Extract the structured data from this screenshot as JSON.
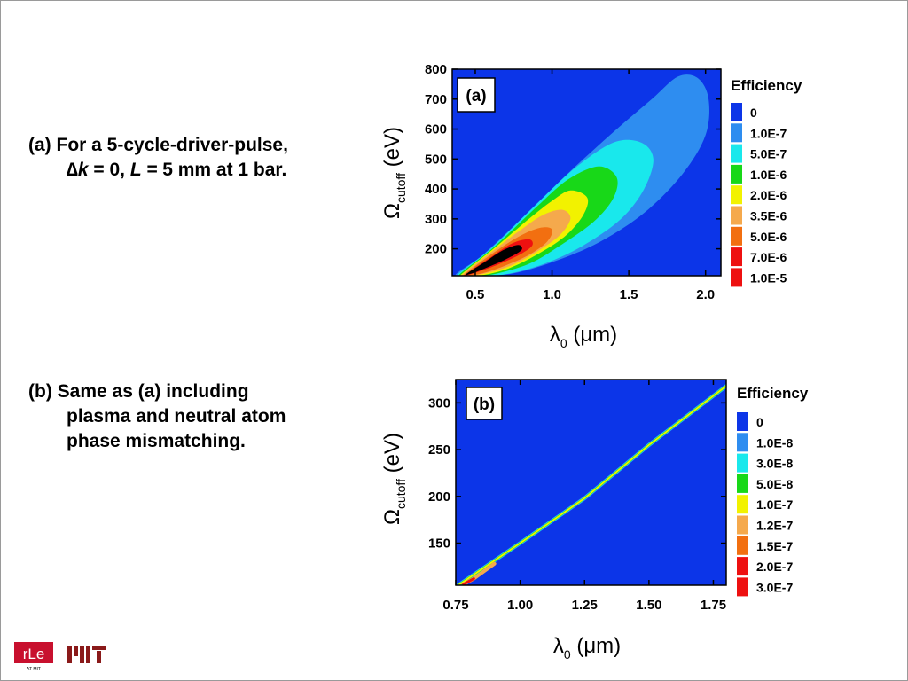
{
  "captions": {
    "a_line1": "(a) For a  5-cycle-driver-pulse,",
    "a_line2_delta": "∆",
    "a_line2_k": "k",
    "a_line2_mid": " = 0, ",
    "a_line2_L": "L =",
    "a_line2_end": " 5 mm at 1 bar.",
    "b_line1": "(b) Same as (a) including",
    "b_line2": "plasma and  neutral atom",
    "b_line3": "phase mismatching."
  },
  "logos": {
    "rle": "rLe",
    "rle_sub": "AT MIT",
    "mit": "MIT"
  },
  "colors": {
    "background": "#0c35e8",
    "levels": [
      "#0c35e8",
      "#2e8df0",
      "#19e8ec",
      "#18d818",
      "#f2f200",
      "#f5a94c",
      "#f26f10",
      "#ee1010"
    ]
  },
  "chart_data": [
    {
      "type": "heatmap",
      "panel_label": "(a)",
      "xlabel_symbol": "λ",
      "xlabel_sub": "0",
      "xlabel_unit": " (μm)",
      "ylabel_symbol": "Ω",
      "ylabel_sub": "cutoff",
      "ylabel_unit": " (eV)",
      "xlim": [
        0.35,
        2.1
      ],
      "ylim": [
        110,
        800
      ],
      "x_ticks": [
        0.5,
        1.0,
        1.5,
        2.0
      ],
      "x_tick_labels": [
        "0.5",
        "1.0",
        "1.5",
        "2.0"
      ],
      "y_ticks": [
        200,
        300,
        400,
        500,
        600,
        700,
        800
      ],
      "y_tick_labels": [
        "200",
        "300",
        "400",
        "500",
        "600",
        "700",
        "800"
      ],
      "legend_title": "Efficiency",
      "legend_levels": [
        "0",
        "1.0E-7",
        "5.0E-7",
        "1.0E-6",
        "2.0E-6",
        "3.5E-6",
        "5.0E-6",
        "7.0E-6",
        "1.0E-5"
      ],
      "contours": [
        {
          "level": "1.0E-7",
          "points": [
            [
              0.37,
              110
            ],
            [
              0.55,
              180
            ],
            [
              0.8,
              300
            ],
            [
              1.1,
              450
            ],
            [
              1.4,
              590
            ],
            [
              1.65,
              700
            ],
            [
              1.82,
              775
            ],
            [
              1.95,
              770
            ],
            [
              2.02,
              700
            ],
            [
              2.0,
              580
            ],
            [
              1.85,
              450
            ],
            [
              1.6,
              320
            ],
            [
              1.3,
              220
            ],
            [
              1.0,
              155
            ],
            [
              0.75,
              118
            ],
            [
              0.55,
              110
            ]
          ]
        },
        {
          "level": "5.0E-7",
          "points": [
            [
              0.38,
              110
            ],
            [
              0.6,
              200
            ],
            [
              0.9,
              350
            ],
            [
              1.15,
              470
            ],
            [
              1.4,
              555
            ],
            [
              1.58,
              555
            ],
            [
              1.66,
              500
            ],
            [
              1.6,
              400
            ],
            [
              1.45,
              300
            ],
            [
              1.2,
              210
            ],
            [
              0.95,
              150
            ],
            [
              0.7,
              115
            ],
            [
              0.5,
              110
            ]
          ]
        },
        {
          "level": "1.0E-6",
          "points": [
            [
              0.39,
              110
            ],
            [
              0.62,
              205
            ],
            [
              0.9,
              340
            ],
            [
              1.1,
              430
            ],
            [
              1.3,
              475
            ],
            [
              1.42,
              440
            ],
            [
              1.4,
              370
            ],
            [
              1.27,
              290
            ],
            [
              1.05,
              210
            ],
            [
              0.85,
              150
            ],
            [
              0.62,
              115
            ],
            [
              0.48,
              110
            ]
          ]
        },
        {
          "level": "2.0E-6",
          "points": [
            [
              0.4,
              110
            ],
            [
              0.63,
              205
            ],
            [
              0.85,
              300
            ],
            [
              1.0,
              360
            ],
            [
              1.12,
              395
            ],
            [
              1.23,
              370
            ],
            [
              1.2,
              310
            ],
            [
              1.08,
              240
            ],
            [
              0.9,
              180
            ],
            [
              0.72,
              135
            ],
            [
              0.55,
              112
            ],
            [
              0.45,
              110
            ]
          ]
        },
        {
          "level": "3.5E-6",
          "points": [
            [
              0.41,
              110
            ],
            [
              0.62,
              195
            ],
            [
              0.8,
              265
            ],
            [
              0.95,
              315
            ],
            [
              1.07,
              330
            ],
            [
              1.12,
              300
            ],
            [
              1.05,
              245
            ],
            [
              0.9,
              190
            ],
            [
              0.75,
              148
            ],
            [
              0.6,
              122
            ],
            [
              0.48,
              110
            ]
          ]
        },
        {
          "level": "5.0E-6",
          "points": [
            [
              0.42,
              110
            ],
            [
              0.6,
              180
            ],
            [
              0.78,
              240
            ],
            [
              0.92,
              270
            ],
            [
              1.0,
              265
            ],
            [
              0.97,
              225
            ],
            [
              0.85,
              180
            ],
            [
              0.7,
              145
            ],
            [
              0.56,
              120
            ],
            [
              0.46,
              110
            ]
          ]
        },
        {
          "level": "7.0E-6",
          "points": [
            [
              0.43,
              112
            ],
            [
              0.6,
              172
            ],
            [
              0.74,
              218
            ],
            [
              0.85,
              232
            ],
            [
              0.87,
              210
            ],
            [
              0.78,
              178
            ],
            [
              0.65,
              148
            ],
            [
              0.53,
              125
            ],
            [
              0.45,
              112
            ]
          ]
        },
        {
          "level": "1.0E-5",
          "points": [
            [
              0.44,
              115
            ],
            [
              0.56,
              155
            ],
            [
              0.68,
              195
            ],
            [
              0.78,
              213
            ],
            [
              0.8,
              195
            ],
            [
              0.7,
              165
            ],
            [
              0.58,
              138
            ],
            [
              0.48,
              118
            ]
          ]
        }
      ]
    },
    {
      "type": "heatmap",
      "panel_label": "(b)",
      "xlabel_symbol": "λ",
      "xlabel_sub": "0",
      "xlabel_unit": " (μm)",
      "ylabel_symbol": "Ω",
      "ylabel_sub": "cutoff",
      "ylabel_unit": " (eV)",
      "xlim": [
        0.75,
        1.8
      ],
      "ylim": [
        105,
        325
      ],
      "x_ticks": [
        0.75,
        1.0,
        1.25,
        1.5,
        1.75
      ],
      "x_tick_labels": [
        "0.75",
        "1.00",
        "1.25",
        "1.50",
        "1.75"
      ],
      "y_ticks": [
        150,
        200,
        250,
        300
      ],
      "y_tick_labels": [
        "150",
        "200",
        "250",
        "300"
      ],
      "legend_title": "Efficiency",
      "legend_levels": [
        "0",
        "1.0E-8",
        "3.0E-8",
        "5.0E-8",
        "1.0E-7",
        "1.2E-7",
        "1.5E-7",
        "2.0E-7",
        "3.0E-7"
      ],
      "ridge": [
        [
          0.76,
          105
        ],
        [
          0.85,
          122
        ],
        [
          1.0,
          150
        ],
        [
          1.25,
          198
        ],
        [
          1.5,
          255
        ],
        [
          1.8,
          318
        ]
      ],
      "ridge_widths": {
        "1.0E-8": 4.5,
        "3.0E-8": 3.5,
        "5.0E-8": 2.6,
        "1.0E-7": 1.8
      },
      "hotspot": [
        [
          0.78,
          106
        ],
        [
          0.82,
          112
        ],
        [
          0.9,
          128
        ]
      ]
    }
  ]
}
